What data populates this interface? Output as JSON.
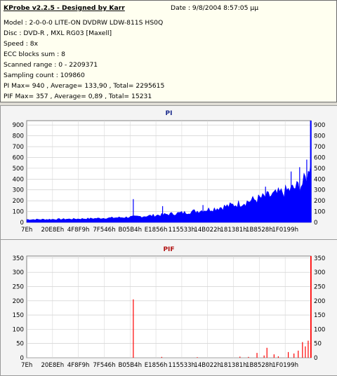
{
  "info": {
    "title": "KProbe v2.2.5 - Designed by Karr",
    "date": "Date : 9/8/2004 8:57:05 μμ",
    "lines": [
      "Model : 2-0-0-0 LITE-ON DVDRW LDW-811S   HS0Q",
      "Disc : DVD-R , MXL RG03 [Maxell]",
      "Speed : 8x",
      "ECC blocks sum : 8",
      "Scanned range : 0 - 2209371",
      "Sampling count : 109860",
      "PI Max= 940 , Average= 133,90 , Total= 2295615",
      "PIF Max= 357 , Average= 0,89 , Total= 15231"
    ]
  },
  "chart_data": [
    {
      "type": "bar",
      "title": "PI",
      "color": "#0000ff",
      "ylim": [
        0,
        940
      ],
      "yticks": [
        0,
        100,
        200,
        300,
        400,
        500,
        600,
        700,
        800,
        900
      ],
      "xticks": [
        "7Eh",
        "20E8Eh",
        "4F8F9h",
        "7F546h",
        "B05B4h",
        "E1856h",
        "115533h",
        "14B022h",
        "181381h",
        "1B8528h",
        "1F0199h"
      ],
      "baseline": [
        [
          0,
          25
        ],
        [
          0.08,
          27
        ],
        [
          0.16,
          30
        ],
        [
          0.24,
          35
        ],
        [
          0.32,
          42
        ],
        [
          0.4,
          52
        ],
        [
          0.48,
          68
        ],
        [
          0.56,
          88
        ],
        [
          0.64,
          115
        ],
        [
          0.72,
          150
        ],
        [
          0.8,
          200
        ],
        [
          0.88,
          250
        ],
        [
          0.94,
          300
        ],
        [
          0.97,
          340
        ],
        [
          0.99,
          420
        ],
        [
          1.0,
          620
        ]
      ],
      "spikes": [
        {
          "x": 0.375,
          "y": 215
        },
        {
          "x": 0.478,
          "y": 150
        },
        {
          "x": 0.62,
          "y": 160
        },
        {
          "x": 0.84,
          "y": 330
        },
        {
          "x": 0.93,
          "y": 470
        },
        {
          "x": 0.96,
          "y": 510
        },
        {
          "x": 0.985,
          "y": 580
        },
        {
          "x": 0.998,
          "y": 940
        }
      ]
    },
    {
      "type": "bar",
      "title": "PIF",
      "color": "#ff0000",
      "ylim": [
        0,
        357
      ],
      "yticks": [
        0,
        50,
        100,
        150,
        200,
        250,
        300,
        350
      ],
      "xticks": [
        "7Eh",
        "20E8Eh",
        "4F8F9h",
        "7F546h",
        "B05B4h",
        "E1856h",
        "115533h",
        "14B022h",
        "181381h",
        "1B8528h",
        "1F0199h"
      ],
      "spikes": [
        {
          "x": 0.375,
          "y": 205
        },
        {
          "x": 0.475,
          "y": 3
        },
        {
          "x": 0.6,
          "y": 2
        },
        {
          "x": 0.75,
          "y": 4
        },
        {
          "x": 0.78,
          "y": 3
        },
        {
          "x": 0.81,
          "y": 17
        },
        {
          "x": 0.835,
          "y": 8
        },
        {
          "x": 0.845,
          "y": 35
        },
        {
          "x": 0.87,
          "y": 12
        },
        {
          "x": 0.885,
          "y": 5
        },
        {
          "x": 0.92,
          "y": 20
        },
        {
          "x": 0.94,
          "y": 15
        },
        {
          "x": 0.955,
          "y": 25
        },
        {
          "x": 0.97,
          "y": 55
        },
        {
          "x": 0.98,
          "y": 40
        },
        {
          "x": 0.99,
          "y": 60
        },
        {
          "x": 0.999,
          "y": 357
        }
      ]
    }
  ]
}
